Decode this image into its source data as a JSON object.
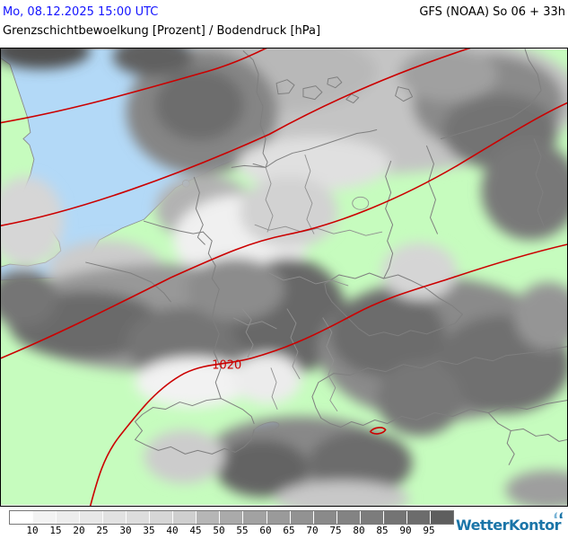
{
  "header": {
    "datetime": "Mo, 08.12.2025 15:00 UTC",
    "model_run": "GFS (NOAA) So 06 + 33h",
    "title": "Grenzschichtbewoelkung [Prozent] / Bodendruck [hPa]"
  },
  "map": {
    "isobar_label": "1020",
    "colors": {
      "land": "#c6fcbe",
      "water": "#b3d9f7",
      "isobar": "#cc0000",
      "border": "#7f7f7f",
      "frame": "#000000",
      "datetime-color": "#1414ff"
    }
  },
  "legend": {
    "cells": [
      "#ffffff",
      "#f3f3f3",
      "#ededed",
      "#e7e7e7",
      "#e2e2e2",
      "#dddddd",
      "#d6d6d6",
      "#cfcfcf",
      "#b6b6b6",
      "#aaaaaa",
      "#a2a2a2",
      "#9a9a9a",
      "#929292",
      "#8a8a8a",
      "#838383",
      "#7c7c7c",
      "#747474",
      "#6c6c6c",
      "#5e5e5e"
    ],
    "tick_labels": [
      "10",
      "15",
      "20",
      "25",
      "30",
      "35",
      "40",
      "45",
      "50",
      "55",
      "60",
      "65",
      "70",
      "75",
      "80",
      "85",
      "90",
      "95"
    ]
  },
  "footer": {
    "brand": "WetterKontor",
    "brand_color": "#1b75a8"
  }
}
